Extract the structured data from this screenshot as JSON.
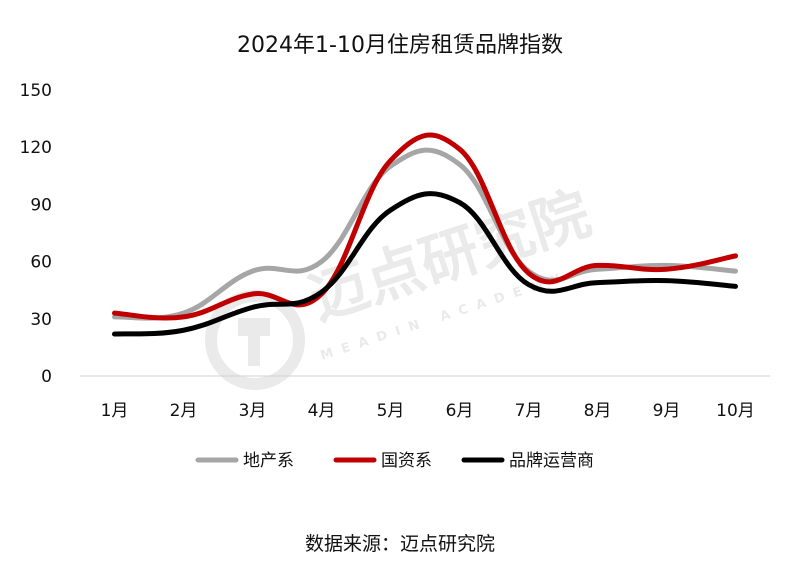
{
  "chart_data": {
    "type": "line",
    "title": "2024年1-10月住房租赁品牌指数",
    "categories": [
      "1月",
      "2月",
      "3月",
      "4月",
      "5月",
      "6月",
      "7月",
      "8月",
      "9月",
      "10月"
    ],
    "ylim": [
      0,
      150
    ],
    "yticks": [
      0,
      30,
      60,
      90,
      120,
      150
    ],
    "grid": false,
    "legend_position": "bottom",
    "series": [
      {
        "name": "地产系",
        "color": "#a6a6a6",
        "values": [
          31,
          33,
          55,
          60,
          110,
          111,
          55,
          56,
          58,
          55
        ]
      },
      {
        "name": "国资系",
        "color": "#c00000",
        "values": [
          33,
          31,
          43,
          43,
          113,
          119,
          54,
          58,
          56,
          63
        ]
      },
      {
        "name": "品牌运营商",
        "color": "#000000",
        "values": [
          22,
          24,
          36,
          44,
          87,
          91,
          48,
          49,
          50,
          47
        ]
      }
    ]
  },
  "source_text": "数据来源：迈点研究院",
  "watermark": {
    "text": "迈点研究院",
    "subtext": "MEADIN ACADEMY",
    "icon": "meadin-logo-icon"
  }
}
